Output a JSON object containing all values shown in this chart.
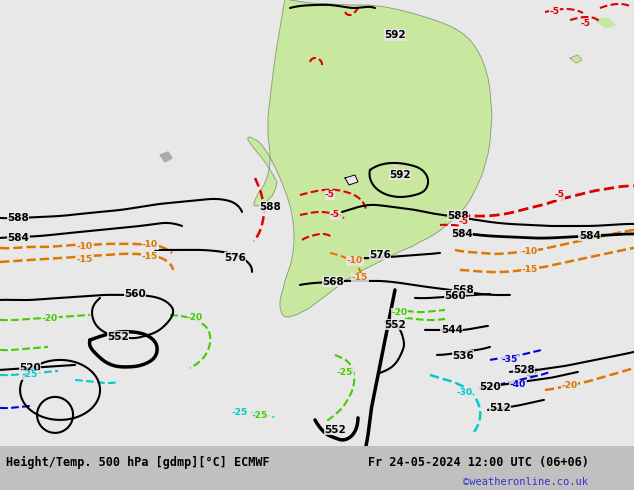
{
  "title_left": "Height/Temp. 500 hPa [gdmp][°C] ECMWF",
  "title_right": "Fr 24-05-2024 12:00 UTC (06+06)",
  "watermark": "©weatheronline.co.uk",
  "bg_color": "#e8e8e8",
  "land_color": "#c8e8a0",
  "ocean_color": "#e8e8e8",
  "land_border_color": "#888888",
  "bottom_bar_color": "#c0c0c0",
  "figsize": [
    6.34,
    4.9
  ],
  "dpi": 100,
  "colors": {
    "black": "#000000",
    "red": "#dd0000",
    "orange": "#dd7700",
    "green": "#44cc00",
    "cyan": "#00cccc",
    "blue": "#0000dd",
    "gray": "#888888"
  }
}
